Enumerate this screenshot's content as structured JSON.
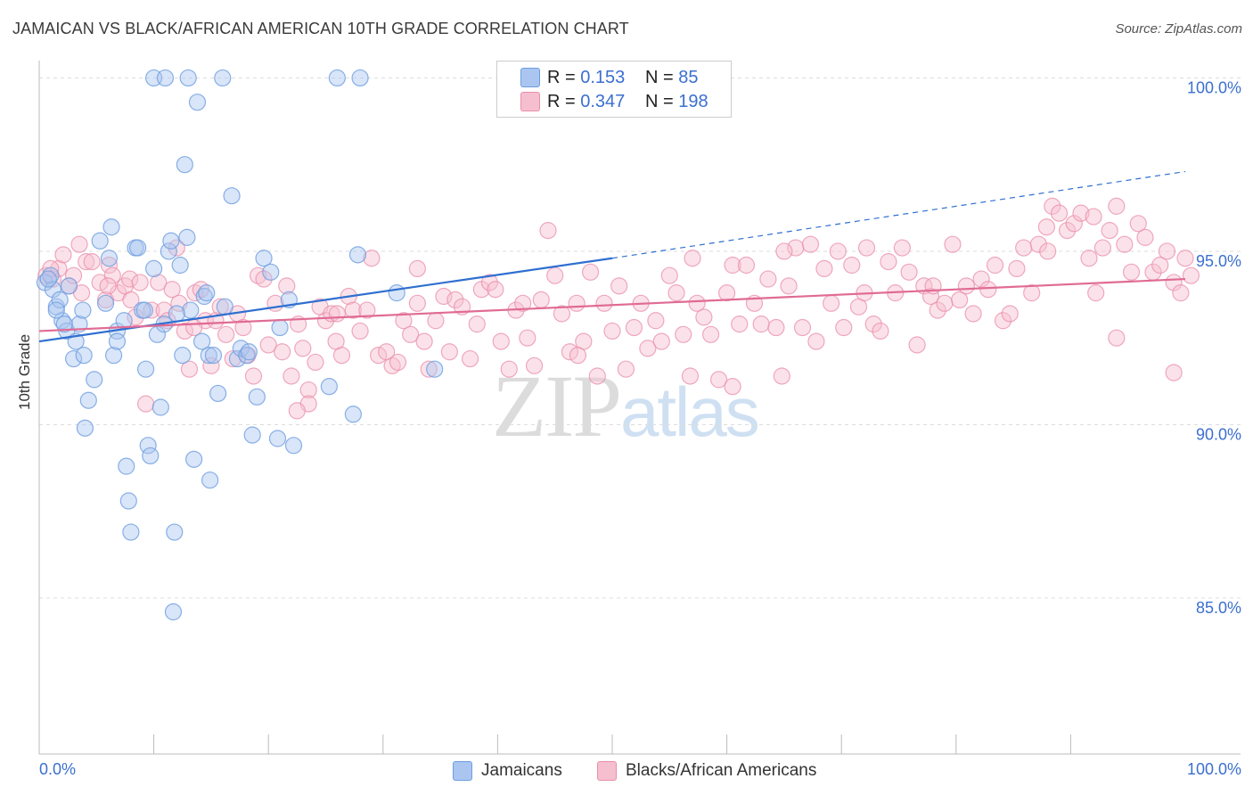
{
  "title": "JAMAICAN VS BLACK/AFRICAN AMERICAN 10TH GRADE CORRELATION CHART",
  "source": "Source: ZipAtlas.com",
  "watermark": {
    "zip": "ZIP",
    "atlas": "atlas"
  },
  "legend": {
    "rows": [
      {
        "r_label": "R = ",
        "r_value": "0.153",
        "n_label": "N = ",
        "n_value": "85",
        "color": "#aac6f0",
        "edge": "#6d9de0"
      },
      {
        "r_label": "R = ",
        "r_value": "0.347",
        "n_label": "N = ",
        "n_value": "198",
        "color": "#f6bfd0",
        "edge": "#ea8eaa"
      }
    ]
  },
  "bottom_legend": [
    {
      "label": "Jamaicans",
      "color": "#aac6f0",
      "edge": "#6d9de0"
    },
    {
      "label": "Blacks/African Americans",
      "color": "#f6bfd0",
      "edge": "#ea8eaa"
    }
  ],
  "chart_data": {
    "type": "scatter",
    "title": "JAMAICAN VS BLACK/AFRICAN AMERICAN 10TH GRADE CORRELATION CHART",
    "xlabel": "",
    "ylabel": "10th Grade",
    "xlim": [
      0,
      100
    ],
    "ylim": [
      80.5,
      100.5
    ],
    "x_tick_labels": [
      "0.0%",
      "100.0%"
    ],
    "y_ticks": [
      85,
      90,
      95,
      100
    ],
    "y_tick_labels": [
      "85.0%",
      "90.0%",
      "95.0%",
      "100.0%"
    ],
    "grid": true,
    "colors": {
      "jamaicans": "#6d9de0",
      "black": "#ea8eaa",
      "jam_line": "#2f6fd0",
      "black_line": "#e06b94",
      "grid": "#dddddd",
      "tick_label": "#3b6fd0"
    },
    "series": [
      {
        "name": "Jamaicans",
        "trend": {
          "x0": 0,
          "y0": 92.4,
          "x1": 50,
          "y1": 94.8,
          "dash_to_x": 100,
          "dash_to_y": 97.3
        },
        "points": [
          [
            0.5,
            94.1
          ],
          [
            1.0,
            94.3
          ],
          [
            1.2,
            93.9
          ],
          [
            1.5,
            93.4
          ],
          [
            1.8,
            93.6
          ],
          [
            2.0,
            93.0
          ],
          [
            2.4,
            92.7
          ],
          [
            2.6,
            94.0
          ],
          [
            3.0,
            91.9
          ],
          [
            3.2,
            92.4
          ],
          [
            3.5,
            92.9
          ],
          [
            3.9,
            92.0
          ],
          [
            4.3,
            90.7
          ],
          [
            4.8,
            91.3
          ],
          [
            5.3,
            95.3
          ],
          [
            5.8,
            93.5
          ],
          [
            6.1,
            94.8
          ],
          [
            6.3,
            95.7
          ],
          [
            6.5,
            92.0
          ],
          [
            6.8,
            92.7
          ],
          [
            7.4,
            93.0
          ],
          [
            7.6,
            88.8
          ],
          [
            7.8,
            87.8
          ],
          [
            8.0,
            86.9
          ],
          [
            8.4,
            95.1
          ],
          [
            8.6,
            95.1
          ],
          [
            9.0,
            93.3
          ],
          [
            9.3,
            91.6
          ],
          [
            9.5,
            89.4
          ],
          [
            9.7,
            89.1
          ],
          [
            10.0,
            94.5
          ],
          [
            10.3,
            92.6
          ],
          [
            10.6,
            90.5
          ],
          [
            10.9,
            92.9
          ],
          [
            11.3,
            95.0
          ],
          [
            11.5,
            95.3
          ],
          [
            11.7,
            84.6
          ],
          [
            11.8,
            86.9
          ],
          [
            12.3,
            94.6
          ],
          [
            12.5,
            92.0
          ],
          [
            12.7,
            97.5
          ],
          [
            12.9,
            95.4
          ],
          [
            13.2,
            93.3
          ],
          [
            13.5,
            89.0
          ],
          [
            13.8,
            99.3
          ],
          [
            14.2,
            92.4
          ],
          [
            14.4,
            93.7
          ],
          [
            14.6,
            93.8
          ],
          [
            14.8,
            92.0
          ],
          [
            14.9,
            88.4
          ],
          [
            15.2,
            92.0
          ],
          [
            15.6,
            90.9
          ],
          [
            16.2,
            93.4
          ],
          [
            16.8,
            96.6
          ],
          [
            17.3,
            91.9
          ],
          [
            17.6,
            92.2
          ],
          [
            18.1,
            92.0
          ],
          [
            18.6,
            89.7
          ],
          [
            19.0,
            90.8
          ],
          [
            19.6,
            94.8
          ],
          [
            20.2,
            94.4
          ],
          [
            20.8,
            89.6
          ],
          [
            21.8,
            93.6
          ],
          [
            22.2,
            89.4
          ],
          [
            25.3,
            91.1
          ],
          [
            27.4,
            90.3
          ],
          [
            27.8,
            94.9
          ],
          [
            31.2,
            93.8
          ],
          [
            34.5,
            91.6
          ],
          [
            1.5,
            93.3
          ],
          [
            2.2,
            92.9
          ],
          [
            3.8,
            93.3
          ],
          [
            6.8,
            92.4
          ],
          [
            9.2,
            93.3
          ],
          [
            10.0,
            100.0
          ],
          [
            11.0,
            100.0
          ],
          [
            13.0,
            100.0
          ],
          [
            16.0,
            100.0
          ],
          [
            26.0,
            100.0
          ],
          [
            28.0,
            100.0
          ],
          [
            18.3,
            92.1
          ],
          [
            0.8,
            94.2
          ],
          [
            4.0,
            89.9
          ],
          [
            21.0,
            92.8
          ],
          [
            12.0,
            93.2
          ]
        ]
      },
      {
        "name": "Blacks/African Americans",
        "trend": {
          "x0": 0,
          "y0": 92.7,
          "x1": 100,
          "y1": 94.2
        },
        "points": [
          [
            0.6,
            94.3
          ],
          [
            1.2,
            94.2
          ],
          [
            1.7,
            94.5
          ],
          [
            2.1,
            94.9
          ],
          [
            2.6,
            94.0
          ],
          [
            3.0,
            94.3
          ],
          [
            3.7,
            93.8
          ],
          [
            4.1,
            94.7
          ],
          [
            4.6,
            94.7
          ],
          [
            5.3,
            94.1
          ],
          [
            5.8,
            93.6
          ],
          [
            6.1,
            94.6
          ],
          [
            6.4,
            94.3
          ],
          [
            6.9,
            93.8
          ],
          [
            7.5,
            94.0
          ],
          [
            7.9,
            94.2
          ],
          [
            8.4,
            93.1
          ],
          [
            8.8,
            94.1
          ],
          [
            9.3,
            90.6
          ],
          [
            9.8,
            93.3
          ],
          [
            10.4,
            94.1
          ],
          [
            10.9,
            93.3
          ],
          [
            11.2,
            93.0
          ],
          [
            11.6,
            93.9
          ],
          [
            12.2,
            93.5
          ],
          [
            12.7,
            92.7
          ],
          [
            13.1,
            91.6
          ],
          [
            13.6,
            93.8
          ],
          [
            14.1,
            93.9
          ],
          [
            14.5,
            93.0
          ],
          [
            15.0,
            91.7
          ],
          [
            15.4,
            93.0
          ],
          [
            15.8,
            93.4
          ],
          [
            16.3,
            92.6
          ],
          [
            16.9,
            91.9
          ],
          [
            17.3,
            93.2
          ],
          [
            17.8,
            92.8
          ],
          [
            18.2,
            92.0
          ],
          [
            18.7,
            91.4
          ],
          [
            19.1,
            94.3
          ],
          [
            19.6,
            94.2
          ],
          [
            20.0,
            92.3
          ],
          [
            20.6,
            93.5
          ],
          [
            21.2,
            92.1
          ],
          [
            21.6,
            94.0
          ],
          [
            22.0,
            91.4
          ],
          [
            22.6,
            92.9
          ],
          [
            23.0,
            92.2
          ],
          [
            23.5,
            91.0
          ],
          [
            24.1,
            91.8
          ],
          [
            24.5,
            93.4
          ],
          [
            25.0,
            93.0
          ],
          [
            25.5,
            93.2
          ],
          [
            25.9,
            92.4
          ],
          [
            26.4,
            92.0
          ],
          [
            27.0,
            93.7
          ],
          [
            27.4,
            93.3
          ],
          [
            28.0,
            92.7
          ],
          [
            28.6,
            93.3
          ],
          [
            29.0,
            94.8
          ],
          [
            29.6,
            92.0
          ],
          [
            30.3,
            92.1
          ],
          [
            30.8,
            91.7
          ],
          [
            31.3,
            91.8
          ],
          [
            31.8,
            93.0
          ],
          [
            32.4,
            92.6
          ],
          [
            33.0,
            93.5
          ],
          [
            33.6,
            92.4
          ],
          [
            34.0,
            91.6
          ],
          [
            34.6,
            93.0
          ],
          [
            35.3,
            93.7
          ],
          [
            35.8,
            92.1
          ],
          [
            36.3,
            93.6
          ],
          [
            36.9,
            93.4
          ],
          [
            37.6,
            91.9
          ],
          [
            38.2,
            92.9
          ],
          [
            38.6,
            93.9
          ],
          [
            39.3,
            94.1
          ],
          [
            39.8,
            93.9
          ],
          [
            40.3,
            92.4
          ],
          [
            41.0,
            91.6
          ],
          [
            41.6,
            93.3
          ],
          [
            42.2,
            93.5
          ],
          [
            42.6,
            92.5
          ],
          [
            43.2,
            91.7
          ],
          [
            43.8,
            93.6
          ],
          [
            44.4,
            95.6
          ],
          [
            45.0,
            94.3
          ],
          [
            45.6,
            93.2
          ],
          [
            46.3,
            92.1
          ],
          [
            46.9,
            93.5
          ],
          [
            47.5,
            92.4
          ],
          [
            48.1,
            94.4
          ],
          [
            48.7,
            91.4
          ],
          [
            49.3,
            93.5
          ],
          [
            50.0,
            92.7
          ],
          [
            50.6,
            94.0
          ],
          [
            51.2,
            91.6
          ],
          [
            51.9,
            92.8
          ],
          [
            52.5,
            93.5
          ],
          [
            53.1,
            92.2
          ],
          [
            53.8,
            93.0
          ],
          [
            54.3,
            92.4
          ],
          [
            55.0,
            94.3
          ],
          [
            55.6,
            93.8
          ],
          [
            56.2,
            92.6
          ],
          [
            56.8,
            91.4
          ],
          [
            57.4,
            93.5
          ],
          [
            58.0,
            93.1
          ],
          [
            58.6,
            92.6
          ],
          [
            59.3,
            91.3
          ],
          [
            60.0,
            93.8
          ],
          [
            60.5,
            94.6
          ],
          [
            61.1,
            92.9
          ],
          [
            61.7,
            94.6
          ],
          [
            62.4,
            93.5
          ],
          [
            63.0,
            92.9
          ],
          [
            63.6,
            94.2
          ],
          [
            64.3,
            92.8
          ],
          [
            64.8,
            91.4
          ],
          [
            65.4,
            94.0
          ],
          [
            66.0,
            95.1
          ],
          [
            66.6,
            92.8
          ],
          [
            67.3,
            95.2
          ],
          [
            67.8,
            92.4
          ],
          [
            68.5,
            94.5
          ],
          [
            69.1,
            93.5
          ],
          [
            69.7,
            95.0
          ],
          [
            70.2,
            92.8
          ],
          [
            70.9,
            94.6
          ],
          [
            71.5,
            93.4
          ],
          [
            72.2,
            95.1
          ],
          [
            72.8,
            92.9
          ],
          [
            73.4,
            92.7
          ],
          [
            74.1,
            94.7
          ],
          [
            74.7,
            93.8
          ],
          [
            75.3,
            95.1
          ],
          [
            75.9,
            94.4
          ],
          [
            76.6,
            92.3
          ],
          [
            77.2,
            94.0
          ],
          [
            77.8,
            93.7
          ],
          [
            78.4,
            93.3
          ],
          [
            79.0,
            93.5
          ],
          [
            79.7,
            95.2
          ],
          [
            80.3,
            93.6
          ],
          [
            80.9,
            94.0
          ],
          [
            81.5,
            93.2
          ],
          [
            82.2,
            94.2
          ],
          [
            82.8,
            93.9
          ],
          [
            83.4,
            94.6
          ],
          [
            84.1,
            93.0
          ],
          [
            84.7,
            93.2
          ],
          [
            85.3,
            94.5
          ],
          [
            85.9,
            95.1
          ],
          [
            86.6,
            93.8
          ],
          [
            87.2,
            95.2
          ],
          [
            87.9,
            95.7
          ],
          [
            88.4,
            96.3
          ],
          [
            89.0,
            96.1
          ],
          [
            89.7,
            95.6
          ],
          [
            90.3,
            95.8
          ],
          [
            90.9,
            96.1
          ],
          [
            91.6,
            94.8
          ],
          [
            92.2,
            93.8
          ],
          [
            92.8,
            95.1
          ],
          [
            93.4,
            95.6
          ],
          [
            94.0,
            96.3
          ],
          [
            94.7,
            95.2
          ],
          [
            95.3,
            94.4
          ],
          [
            95.9,
            95.8
          ],
          [
            96.5,
            95.4
          ],
          [
            97.2,
            94.4
          ],
          [
            97.8,
            94.6
          ],
          [
            98.4,
            95.0
          ],
          [
            99.0,
            94.1
          ],
          [
            99.6,
            93.8
          ],
          [
            100.0,
            94.8
          ],
          [
            100.5,
            94.3
          ],
          [
            99.0,
            91.5
          ],
          [
            94.0,
            92.5
          ],
          [
            78.0,
            94.0
          ],
          [
            60.5,
            91.1
          ],
          [
            47.0,
            92.0
          ],
          [
            57.0,
            94.8
          ],
          [
            33.0,
            94.5
          ],
          [
            6.0,
            94.0
          ],
          [
            8.0,
            93.6
          ],
          [
            13.5,
            92.8
          ],
          [
            23.5,
            90.6
          ],
          [
            22.5,
            90.4
          ],
          [
            26.0,
            93.2
          ],
          [
            1.0,
            94.5
          ],
          [
            3.5,
            95.2
          ],
          [
            65.0,
            95.0
          ],
          [
            88.0,
            95.0
          ],
          [
            92.0,
            96.0
          ],
          [
            72.0,
            93.8
          ],
          [
            12.0,
            95.1
          ]
        ]
      }
    ]
  }
}
